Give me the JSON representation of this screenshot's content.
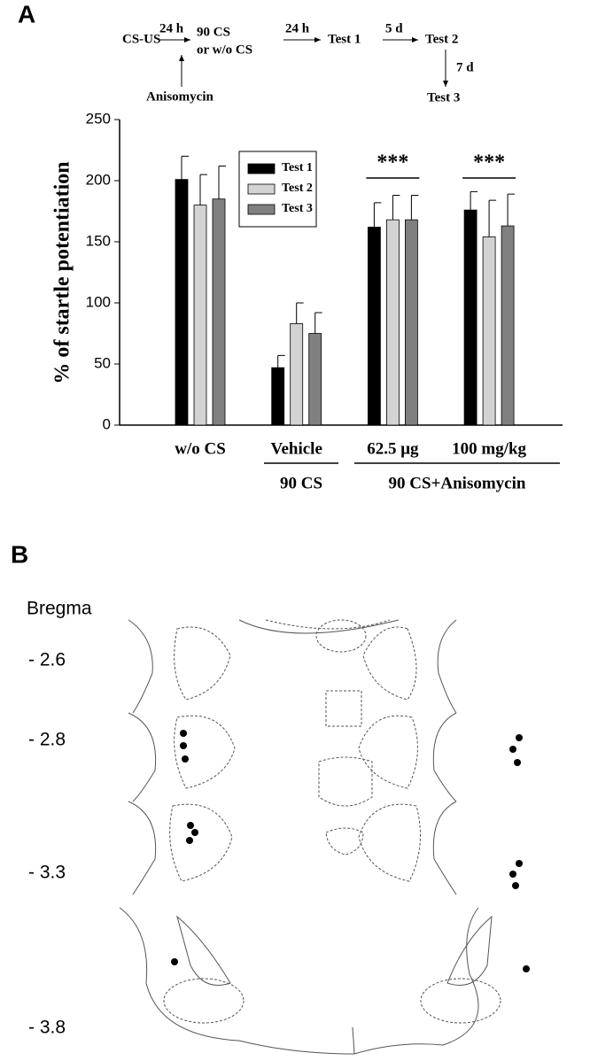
{
  "panel_labels": [
    "A",
    "B"
  ],
  "protocol": {
    "step1": "CS-US",
    "interval1": "24 h",
    "step2a": "90 CS",
    "step2b": "or w/o CS",
    "treatment": "Anisomycin",
    "interval2": "24 h",
    "test1": "Test 1",
    "interval3": "5 d",
    "test2": "Test 2",
    "interval4": "7 d",
    "test3": "Test 3"
  },
  "chart_data": {
    "type": "bar",
    "y_label": "% of startle potentiation",
    "categories": [
      "w/o CS",
      "Vehicle",
      "62.5 μg",
      "100 mg/kg"
    ],
    "group_labels": [
      "90 CS",
      "90 CS+Anisomycin"
    ],
    "significance": [
      "***",
      "***"
    ],
    "series": [
      {
        "name": "Test 1",
        "color": "#000000",
        "values": [
          201,
          47,
          162,
          176
        ],
        "errors": [
          19,
          10,
          20,
          15
        ]
      },
      {
        "name": "Test 2",
        "color": "#d3d3d3",
        "values": [
          180,
          83,
          168,
          154
        ],
        "errors": [
          25,
          17,
          20,
          30
        ]
      },
      {
        "name": "Test 3",
        "color": "#808080",
        "values": [
          185,
          75,
          168,
          163
        ],
        "errors": [
          27,
          17,
          20,
          26
        ]
      }
    ],
    "ylim": [
      0,
      250
    ],
    "yticks": [
      0,
      50,
      100,
      150,
      200,
      250
    ],
    "grid": false
  },
  "atlas": {
    "title": "Bregma",
    "levels": [
      "- 2.6",
      "- 2.8",
      "- 3.3",
      "- 3.8"
    ]
  }
}
